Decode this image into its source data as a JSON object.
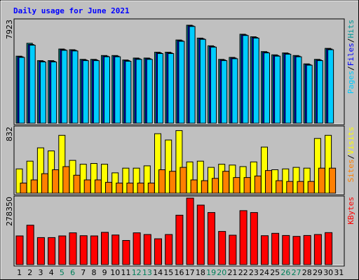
{
  "chart_data": {
    "type": "bar",
    "title": "Daily usage for June 2021",
    "categories": [
      "1",
      "2",
      "3",
      "4",
      "5",
      "6",
      "7",
      "8",
      "9",
      "10",
      "11",
      "12",
      "13",
      "14",
      "15",
      "16",
      "17",
      "18",
      "19",
      "20",
      "21",
      "22",
      "23",
      "24",
      "25",
      "26",
      "27",
      "28",
      "29",
      "30",
      "31"
    ],
    "weekend_days": [
      "5",
      "6",
      "12",
      "13",
      "19",
      "20",
      "26",
      "27"
    ],
    "panels": [
      {
        "id": "hits-files-pages",
        "ymax_label": "7923",
        "ymax": 7923,
        "legend": [
          "Pages",
          "Files",
          "Hits"
        ],
        "series": [
          {
            "name": "Hits",
            "color": "#009999",
            "values": [
              5200,
              6200,
              4850,
              4850,
              5750,
              5700,
              4950,
              4950,
              5250,
              5250,
              4900,
              5050,
              5050,
              5500,
              5500,
              6450,
              7600,
              6600,
              6000,
              4950,
              5100,
              6900,
              6700,
              5550,
              5300,
              5450,
              5250,
              4600,
              4950,
              5800,
              0
            ]
          },
          {
            "name": "Files",
            "color": "#0000ff",
            "values": [
              5150,
              6100,
              4800,
              4800,
              5700,
              5650,
              4900,
              4900,
              5200,
              5200,
              4850,
              5000,
              5000,
              5450,
              5450,
              6400,
              7550,
              6550,
              5950,
              4900,
              5050,
              6850,
              6650,
              5500,
              5250,
              5400,
              5200,
              4550,
              4900,
              5750,
              0
            ]
          },
          {
            "name": "Pages",
            "color": "#00ccff",
            "values": [
              5100,
              6050,
              4750,
              4750,
              5650,
              5600,
              4850,
              4850,
              5150,
              5150,
              4800,
              4950,
              4950,
              5400,
              5400,
              6350,
              7500,
              6500,
              5900,
              4850,
              5000,
              6800,
              6600,
              5450,
              5200,
              5350,
              5150,
              4500,
              4850,
              5700,
              0
            ]
          }
        ]
      },
      {
        "id": "visits-sites",
        "ymax_label": "832",
        "ymax": 832,
        "legend": [
          "Sites",
          "Visits"
        ],
        "series": [
          {
            "name": "Visits",
            "color": "#ffff00",
            "values": [
              310,
              410,
              580,
              540,
              740,
              420,
              370,
              380,
              370,
              260,
              320,
              320,
              350,
              760,
              680,
              800,
              400,
              410,
              330,
              370,
              360,
              340,
              400,
              590,
              300,
              310,
              330,
              320,
              700,
              740,
              0
            ]
          },
          {
            "name": "Sites",
            "color": "#ff8000",
            "values": [
              130,
              170,
              250,
              300,
              340,
              230,
              170,
              170,
              140,
              130,
              130,
              130,
              130,
              300,
              280,
              330,
              170,
              160,
              190,
              280,
              200,
              200,
              220,
              290,
              160,
              150,
              150,
              150,
              320,
              320,
              0
            ]
          }
        ]
      },
      {
        "id": "kbytes",
        "ymax_label": "278350",
        "ymax": 278350,
        "legend": [
          "KBytes"
        ],
        "series": [
          {
            "name": "KBytes",
            "color": "#ff0000",
            "values": [
              120000,
              165000,
              113000,
              113000,
              120000,
              133000,
              121000,
              120000,
              135000,
              124000,
              101000,
              133000,
              126000,
              108000,
              126000,
              207000,
              278350,
              249000,
              218000,
              139000,
              123000,
              226000,
              218000,
              121000,
              131000,
              122000,
              118000,
              122000,
              126000,
              134000,
              0
            ]
          }
        ]
      }
    ]
  }
}
